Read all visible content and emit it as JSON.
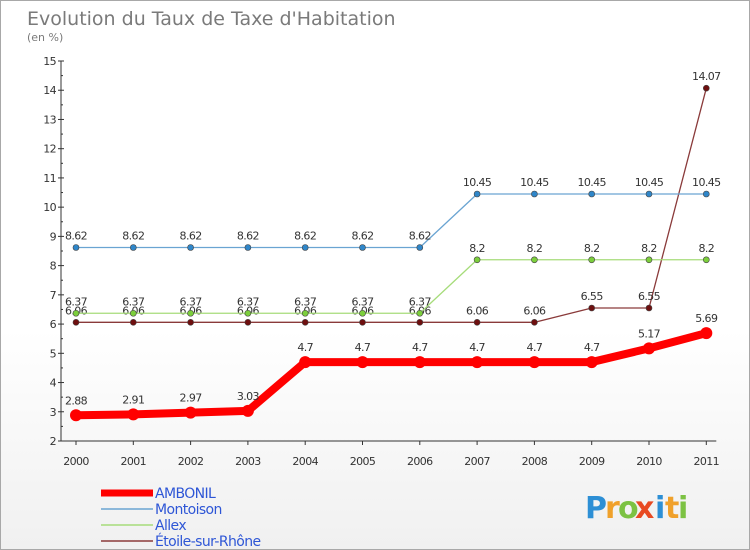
{
  "chart_data": {
    "type": "line",
    "title": "Evolution du Taux de Taxe d'Habitation",
    "subtitle": "(en %)",
    "x": [
      "2000",
      "2001",
      "2002",
      "2003",
      "2004",
      "2005",
      "2006",
      "2007",
      "2008",
      "2009",
      "2010",
      "2011"
    ],
    "ylim": [
      2,
      15
    ],
    "yticks": [
      "2",
      "3",
      "4",
      "5",
      "6",
      "7",
      "8",
      "9",
      "10",
      "11",
      "12",
      "13",
      "14",
      "15"
    ],
    "grid": false,
    "legend_position": "bottom-left",
    "series": [
      {
        "name": "AMBONIL",
        "color": "#ff0000",
        "point_color": "#ff0000",
        "values": [
          2.88,
          2.91,
          2.97,
          3.03,
          4.7,
          4.7,
          4.7,
          4.7,
          4.7,
          4.7,
          5.17,
          5.69
        ],
        "labels": [
          "2.88",
          "2.91",
          "2.97",
          "3.03",
          "4.7",
          "4.7",
          "4.7",
          "4.7",
          "4.7",
          "4.7",
          "5.17",
          "5.69"
        ]
      },
      {
        "name": "Montoison",
        "color": "#6aa4d2",
        "point_color": "#2f86c9",
        "values": [
          8.62,
          8.62,
          8.62,
          8.62,
          8.62,
          8.62,
          8.62,
          10.45,
          10.45,
          10.45,
          10.45,
          10.45
        ],
        "labels": [
          "8.62",
          "8.62",
          "8.62",
          "8.62",
          "8.62",
          "8.62",
          "8.62",
          "10.45",
          "10.45",
          "10.45",
          "10.45",
          "10.45"
        ]
      },
      {
        "name": "Allex",
        "color": "#a6dc7a",
        "point_color": "#7ccf3c",
        "values": [
          6.37,
          6.37,
          6.37,
          6.37,
          6.37,
          6.37,
          6.37,
          8.2,
          8.2,
          8.2,
          8.2,
          8.2
        ],
        "labels": [
          "6.37",
          "6.37",
          "6.37",
          "6.37",
          "6.37",
          "6.37",
          "6.37",
          "8.2",
          "8.2",
          "8.2",
          "8.2",
          "8.2"
        ]
      },
      {
        "name": "Étoile-sur-Rhône",
        "color": "#8a3a3a",
        "point_color": "#6e0f0f",
        "values": [
          6.06,
          6.06,
          6.06,
          6.06,
          6.06,
          6.06,
          6.06,
          6.06,
          6.06,
          6.55,
          6.55,
          14.07
        ],
        "labels": [
          "6.06",
          "6.06",
          "6.06",
          "6.06",
          "6.06",
          "6.06",
          "6.06",
          "6.06",
          "6.06",
          "6.55",
          "6.55",
          "14.07"
        ]
      }
    ]
  },
  "branding": {
    "letters": [
      "P",
      "r",
      "o",
      "x",
      "i",
      "t",
      "i"
    ],
    "colors": [
      "#2d8fd5",
      "#f0a12b",
      "#7cc243",
      "#e84a22",
      "#2d8fd5",
      "#f0a12b",
      "#7cc243"
    ]
  }
}
